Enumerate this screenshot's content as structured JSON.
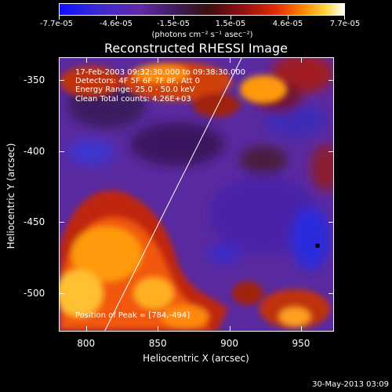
{
  "chart_data": {
    "type": "heatmap",
    "title": "Reconstructed RHESSI Image",
    "xlabel": "Heliocentric X (arcsec)",
    "ylabel": "Heliocentric Y (arcsec)",
    "xlim": [
      781,
      973
    ],
    "ylim": [
      -527,
      -334
    ],
    "xticks": [
      "800",
      "850",
      "900",
      "950"
    ],
    "yticks": [
      "-350",
      "-400",
      "-450",
      "-500"
    ],
    "colorbar": {
      "ticks": [
        "-7.7e-05",
        "-4.6e-05",
        "-1.5e-05",
        "1.5e-05",
        "4.6e-05",
        "7.7e-05"
      ],
      "units": "(photons cm⁻² s⁻¹ asec⁻²)",
      "range": [
        -7.7e-05,
        7.7e-05
      ]
    },
    "info": [
      "17-Feb-2003 09:32:30.000 to 09:38:30.000",
      "Detectors: 4F 5F 6F 7F 8F, Att 0",
      "Energy Range: 25.0 - 50.0 keV",
      "Clean    Total counts: 4.26E+03"
    ],
    "peak_label": "Position of Peak = [784,-494]",
    "limb_points": [
      [
        812,
        -527
      ],
      [
        908,
        -334
      ]
    ],
    "marker_point": [
      961,
      -466
    ]
  },
  "footer": {
    "date": "30-May-2013 03:09"
  }
}
